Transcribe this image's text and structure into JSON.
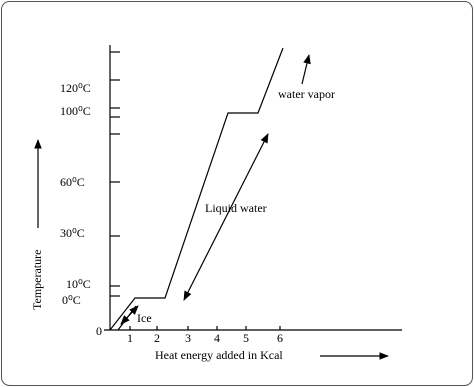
{
  "axes": {
    "y_title": "Temperature",
    "x_title": "Heat energy  added in Kcal",
    "origin": "0",
    "y_labels": [
      "0⁰C",
      "10⁰C",
      "30⁰C",
      "60⁰C",
      "100⁰C",
      "120⁰C"
    ],
    "x_labels": [
      "1",
      "2",
      "3",
      "4",
      "5",
      "6"
    ]
  },
  "annotations": {
    "ice": "Ice",
    "liquid": "Liquid water",
    "vapor": "water vapor"
  }
}
